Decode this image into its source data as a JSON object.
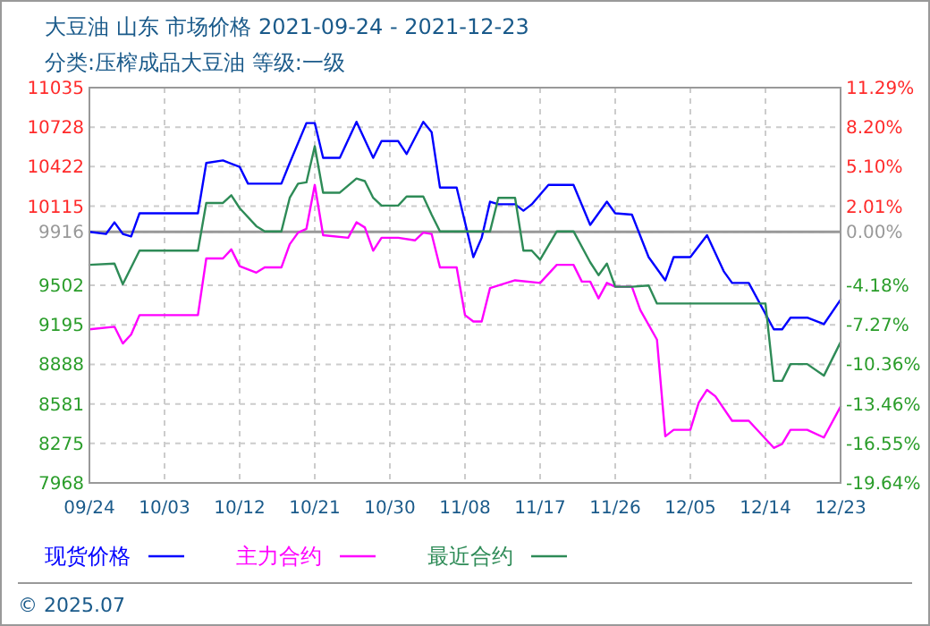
{
  "chart_data": {
    "type": "line",
    "title": "大豆油 山东 市场价格 2021-09-24 - 2021-12-23",
    "subtitle": "分类:压榨成品大豆油 等级:一级",
    "xlim": [
      "2021-09-24",
      "2021-12-23"
    ],
    "xticks": [
      {
        "value": "2021-09-24",
        "label": "09/24"
      },
      {
        "value": "2021-10-03",
        "label": "10/03"
      },
      {
        "value": "2021-10-12",
        "label": "10/12"
      },
      {
        "value": "2021-10-21",
        "label": "10/21"
      },
      {
        "value": "2021-10-30",
        "label": "10/30"
      },
      {
        "value": "2021-11-08",
        "label": "11/08"
      },
      {
        "value": "2021-11-17",
        "label": "11/17"
      },
      {
        "value": "2021-11-26",
        "label": "11/26"
      },
      {
        "value": "2021-12-05",
        "label": "12/05"
      },
      {
        "value": "2021-12-14",
        "label": "12/14"
      },
      {
        "value": "2021-12-23",
        "label": "12/23"
      }
    ],
    "ylim": [
      7968,
      11035
    ],
    "yticks": [
      11035,
      10728,
      10422,
      10115,
      9916,
      9502,
      9195,
      8888,
      8581,
      8275,
      7968
    ],
    "y2lim": [
      -19.64,
      11.29
    ],
    "y2ticks": [
      {
        "value": 11.29,
        "label": "11.29%"
      },
      {
        "value": 8.2,
        "label": "8.20%"
      },
      {
        "value": 5.1,
        "label": "5.10%"
      },
      {
        "value": 2.01,
        "label": "2.01%"
      },
      {
        "value": 0,
        "label": "0.00%"
      },
      {
        "value": -4.18,
        "label": "-4.18%"
      },
      {
        "value": -7.27,
        "label": "-7.27%"
      },
      {
        "value": -10.36,
        "label": "-10.36%"
      },
      {
        "value": -13.46,
        "label": "-13.46%"
      },
      {
        "value": -16.55,
        "label": "-16.55%"
      },
      {
        "value": -19.64,
        "label": "-19.64%"
      }
    ],
    "grid": true,
    "legend": "bottom",
    "marker": "none",
    "line_style": "solid",
    "ref_lines": [
      {
        "axis": "y2",
        "value": 0,
        "color": "#999999",
        "line_style": "solid"
      }
    ],
    "annotations": [
      "© 2025.07"
    ],
    "series": [
      {
        "name": "现货价格",
        "color": "#0000ff",
        "x": [
          "2021-09-24",
          "2021-09-26",
          "2021-09-27",
          "2021-09-28",
          "2021-09-29",
          "2021-09-30",
          "2021-10-07",
          "2021-10-08",
          "2021-10-10",
          "2021-10-12",
          "2021-10-13",
          "2021-10-17",
          "2021-10-18",
          "2021-10-20",
          "2021-10-21",
          "2021-10-22",
          "2021-10-24",
          "2021-10-26",
          "2021-10-28",
          "2021-10-29",
          "2021-10-31",
          "2021-11-01",
          "2021-11-03",
          "2021-11-04",
          "2021-11-05",
          "2021-11-07",
          "2021-11-09",
          "2021-11-10",
          "2021-11-11",
          "2021-11-12",
          "2021-11-14",
          "2021-11-15",
          "2021-11-16",
          "2021-11-18",
          "2021-11-21",
          "2021-11-23",
          "2021-11-25",
          "2021-11-26",
          "2021-11-28",
          "2021-11-30",
          "2021-12-02",
          "2021-12-03",
          "2021-12-05",
          "2021-12-07",
          "2021-12-09",
          "2021-12-10",
          "2021-12-12",
          "2021-12-15",
          "2021-12-16",
          "2021-12-17",
          "2021-12-19",
          "2021-12-21",
          "2021-12-23"
        ],
        "values": [
          9916,
          9900,
          9990,
          9900,
          9880,
          10060,
          10060,
          10450,
          10470,
          10420,
          10290,
          10290,
          10450,
          10760,
          10760,
          10490,
          10490,
          10770,
          10490,
          10620,
          10620,
          10520,
          10770,
          10690,
          10260,
          10260,
          9720,
          9870,
          10150,
          10130,
          10130,
          10080,
          10130,
          10280,
          10280,
          9970,
          10150,
          10060,
          10050,
          9720,
          9540,
          9720,
          9720,
          9890,
          9610,
          9520,
          9520,
          9160,
          9160,
          9250,
          9250,
          9200,
          9390
        ]
      },
      {
        "name": "主力合约",
        "color": "#ff00ff",
        "x": [
          "2021-09-24",
          "2021-09-27",
          "2021-09-28",
          "2021-09-29",
          "2021-09-30",
          "2021-10-07",
          "2021-10-08",
          "2021-10-10",
          "2021-10-11",
          "2021-10-12",
          "2021-10-14",
          "2021-10-15",
          "2021-10-17",
          "2021-10-18",
          "2021-10-19",
          "2021-10-20",
          "2021-10-21",
          "2021-10-22",
          "2021-10-25",
          "2021-10-26",
          "2021-10-27",
          "2021-10-28",
          "2021-10-29",
          "2021-10-31",
          "2021-11-02",
          "2021-11-03",
          "2021-11-04",
          "2021-11-05",
          "2021-11-07",
          "2021-11-08",
          "2021-11-09",
          "2021-11-10",
          "2021-11-11",
          "2021-11-14",
          "2021-11-17",
          "2021-11-19",
          "2021-11-21",
          "2021-11-22",
          "2021-11-23",
          "2021-11-24",
          "2021-11-25",
          "2021-11-26",
          "2021-11-28",
          "2021-11-29",
          "2021-12-01",
          "2021-12-02",
          "2021-12-03",
          "2021-12-05",
          "2021-12-06",
          "2021-12-07",
          "2021-12-08",
          "2021-12-10",
          "2021-12-12",
          "2021-12-15",
          "2021-12-16",
          "2021-12-17",
          "2021-12-19",
          "2021-12-21",
          "2021-12-23"
        ],
        "values": [
          9160,
          9180,
          9050,
          9120,
          9270,
          9270,
          9710,
          9710,
          9780,
          9650,
          9600,
          9640,
          9640,
          9820,
          9910,
          9940,
          10280,
          9890,
          9870,
          9990,
          9950,
          9770,
          9870,
          9870,
          9850,
          9910,
          9900,
          9640,
          9640,
          9270,
          9220,
          9220,
          9480,
          9540,
          9520,
          9660,
          9660,
          9530,
          9530,
          9400,
          9520,
          9490,
          9490,
          9310,
          9080,
          8330,
          8380,
          8380,
          8590,
          8690,
          8640,
          8450,
          8450,
          8240,
          8270,
          8380,
          8380,
          8320,
          8560
        ]
      },
      {
        "name": "最近合约",
        "color": "#2e8b57",
        "x": [
          "2021-09-24",
          "2021-09-27",
          "2021-09-28",
          "2021-09-30",
          "2021-10-07",
          "2021-10-08",
          "2021-10-10",
          "2021-10-11",
          "2021-10-12",
          "2021-10-14",
          "2021-10-15",
          "2021-10-17",
          "2021-10-18",
          "2021-10-19",
          "2021-10-20",
          "2021-10-21",
          "2021-10-22",
          "2021-10-24",
          "2021-10-26",
          "2021-10-27",
          "2021-10-28",
          "2021-10-29",
          "2021-10-31",
          "2021-11-01",
          "2021-11-03",
          "2021-11-04",
          "2021-11-05",
          "2021-11-11",
          "2021-11-12",
          "2021-11-14",
          "2021-11-15",
          "2021-11-16",
          "2021-11-17",
          "2021-11-19",
          "2021-11-21",
          "2021-11-23",
          "2021-11-24",
          "2021-11-25",
          "2021-11-26",
          "2021-11-28",
          "2021-11-30",
          "2021-12-01",
          "2021-12-14",
          "2021-12-15",
          "2021-12-16",
          "2021-12-17",
          "2021-12-19",
          "2021-12-21",
          "2021-12-23"
        ],
        "values": [
          9660,
          9670,
          9510,
          9770,
          9770,
          10140,
          10140,
          10200,
          10100,
          9960,
          9920,
          9920,
          10180,
          10290,
          10300,
          10580,
          10220,
          10220,
          10330,
          10310,
          10180,
          10120,
          10120,
          10190,
          10190,
          10050,
          9920,
          9920,
          10180,
          10180,
          9770,
          9770,
          9700,
          9920,
          9920,
          9680,
          9580,
          9670,
          9490,
          9490,
          9500,
          9360,
          9360,
          8760,
          8760,
          8890,
          8890,
          8800,
          9060
        ]
      }
    ]
  }
}
